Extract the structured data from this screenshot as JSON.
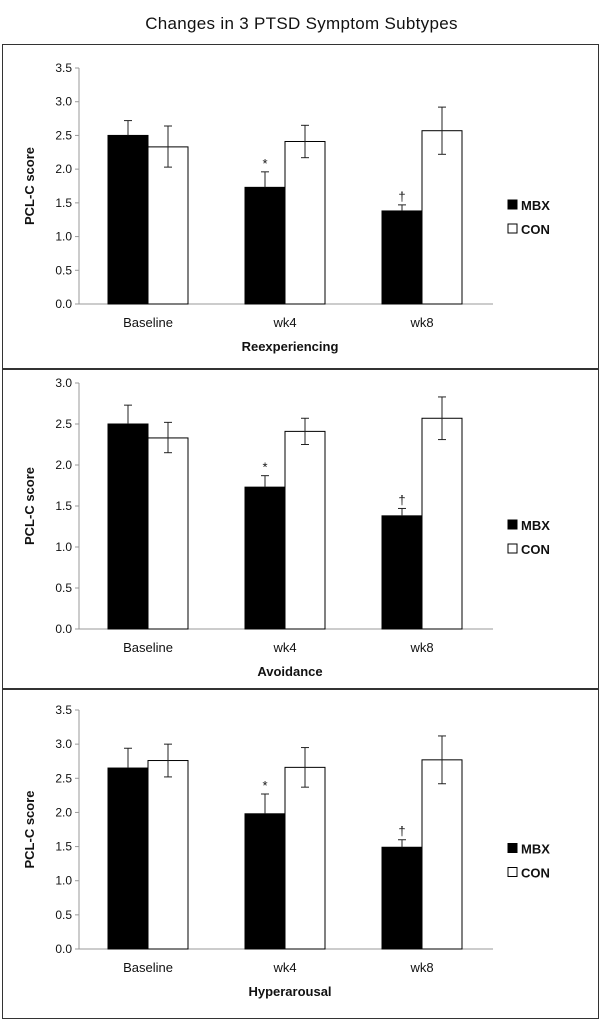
{
  "title": "Changes in 3 PTSD Symptom Subtypes",
  "chart_data": [
    {
      "type": "bar",
      "xlabel": "Reexperiencing",
      "ylabel": "PCL-C score",
      "ylim": [
        0,
        3.5
      ],
      "yticks": [
        "0.0",
        "0.5",
        "1.0",
        "1.5",
        "2.0",
        "2.5",
        "3.0",
        "3.5"
      ],
      "categories": [
        "Baseline",
        "wk4",
        "wk8"
      ],
      "legend": "right",
      "series": [
        {
          "name": "MBX",
          "color": "#000000",
          "values": [
            2.5,
            1.73,
            1.38
          ],
          "error_upper": [
            2.72,
            1.96,
            1.47
          ]
        },
        {
          "name": "CON",
          "color": "#ffffff",
          "values": [
            2.33,
            2.41,
            2.57
          ],
          "error_upper": [
            2.64,
            2.65,
            2.92
          ],
          "error_lower": [
            2.03,
            2.17,
            2.22
          ]
        }
      ],
      "annotations": [
        "",
        "*",
        "†"
      ]
    },
    {
      "type": "bar",
      "xlabel": "Avoidance",
      "ylabel": "PCL-C score",
      "ylim": [
        0,
        3.0
      ],
      "yticks": [
        "0.0",
        "0.5",
        "1.0",
        "1.5",
        "2.0",
        "2.5",
        "3.0"
      ],
      "categories": [
        "Baseline",
        "wk4",
        "wk8"
      ],
      "legend": "right",
      "series": [
        {
          "name": "MBX",
          "color": "#000000",
          "values": [
            2.5,
            1.73,
            1.38
          ],
          "error_upper": [
            2.73,
            1.87,
            1.47
          ]
        },
        {
          "name": "CON",
          "color": "#ffffff",
          "values": [
            2.33,
            2.41,
            2.57
          ],
          "error_upper": [
            2.52,
            2.57,
            2.83
          ],
          "error_lower": [
            2.15,
            2.25,
            2.31
          ]
        }
      ],
      "annotations": [
        "",
        "*",
        "†"
      ]
    },
    {
      "type": "bar",
      "xlabel": "Hyperarousal",
      "ylabel": "PCL-C score",
      "ylim": [
        0,
        3.5
      ],
      "yticks": [
        "0.0",
        "0.5",
        "1.0",
        "1.5",
        "2.0",
        "2.5",
        "3.0",
        "3.5"
      ],
      "categories": [
        "Baseline",
        "wk4",
        "wk8"
      ],
      "legend": "right",
      "series": [
        {
          "name": "MBX",
          "color": "#000000",
          "values": [
            2.65,
            1.98,
            1.49
          ],
          "error_upper": [
            2.94,
            2.27,
            1.6
          ]
        },
        {
          "name": "CON",
          "color": "#ffffff",
          "values": [
            2.76,
            2.66,
            2.77
          ],
          "error_upper": [
            3.0,
            2.95,
            3.12
          ],
          "error_lower": [
            2.52,
            2.37,
            2.42
          ]
        }
      ],
      "annotations": [
        "",
        "*",
        "†"
      ]
    }
  ]
}
